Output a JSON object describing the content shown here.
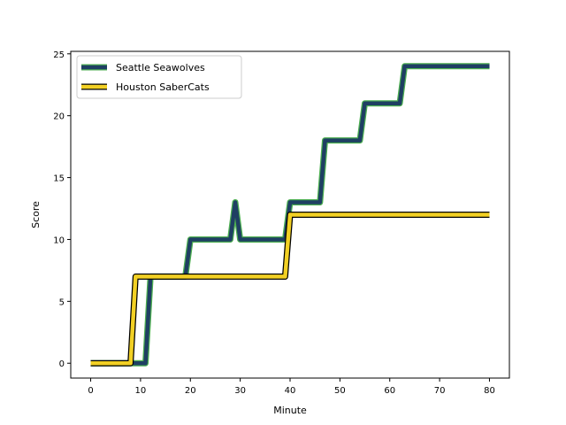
{
  "chart_data": {
    "type": "line",
    "xlabel": "Minute",
    "ylabel": "Score",
    "xlim": [
      -4,
      84
    ],
    "ylim": [
      -1.2,
      25.2
    ],
    "xticks": [
      0,
      10,
      20,
      30,
      40,
      50,
      60,
      70,
      80
    ],
    "yticks": [
      0,
      5,
      10,
      15,
      20,
      25
    ],
    "grid": false,
    "legend_position": "upper-left",
    "series": [
      {
        "name": "Seattle Seawolves",
        "color": "#1f3f63",
        "edge_color": "#4caf50",
        "points": [
          [
            0,
            0
          ],
          [
            11,
            0
          ],
          [
            12,
            7
          ],
          [
            19,
            7
          ],
          [
            20,
            10
          ],
          [
            28,
            10
          ],
          [
            29,
            13
          ],
          [
            30,
            10
          ],
          [
            39,
            10
          ],
          [
            40,
            13
          ],
          [
            46,
            13
          ],
          [
            47,
            18
          ],
          [
            54,
            18
          ],
          [
            55,
            21
          ],
          [
            62,
            21
          ],
          [
            63,
            24
          ],
          [
            80,
            24
          ]
        ]
      },
      {
        "name": "Houston SaberCats",
        "color": "#f2d024",
        "edge_color": "#000000",
        "points": [
          [
            0,
            0
          ],
          [
            8,
            0
          ],
          [
            9,
            7
          ],
          [
            39,
            7
          ],
          [
            40,
            12
          ],
          [
            80,
            12
          ]
        ]
      }
    ]
  }
}
